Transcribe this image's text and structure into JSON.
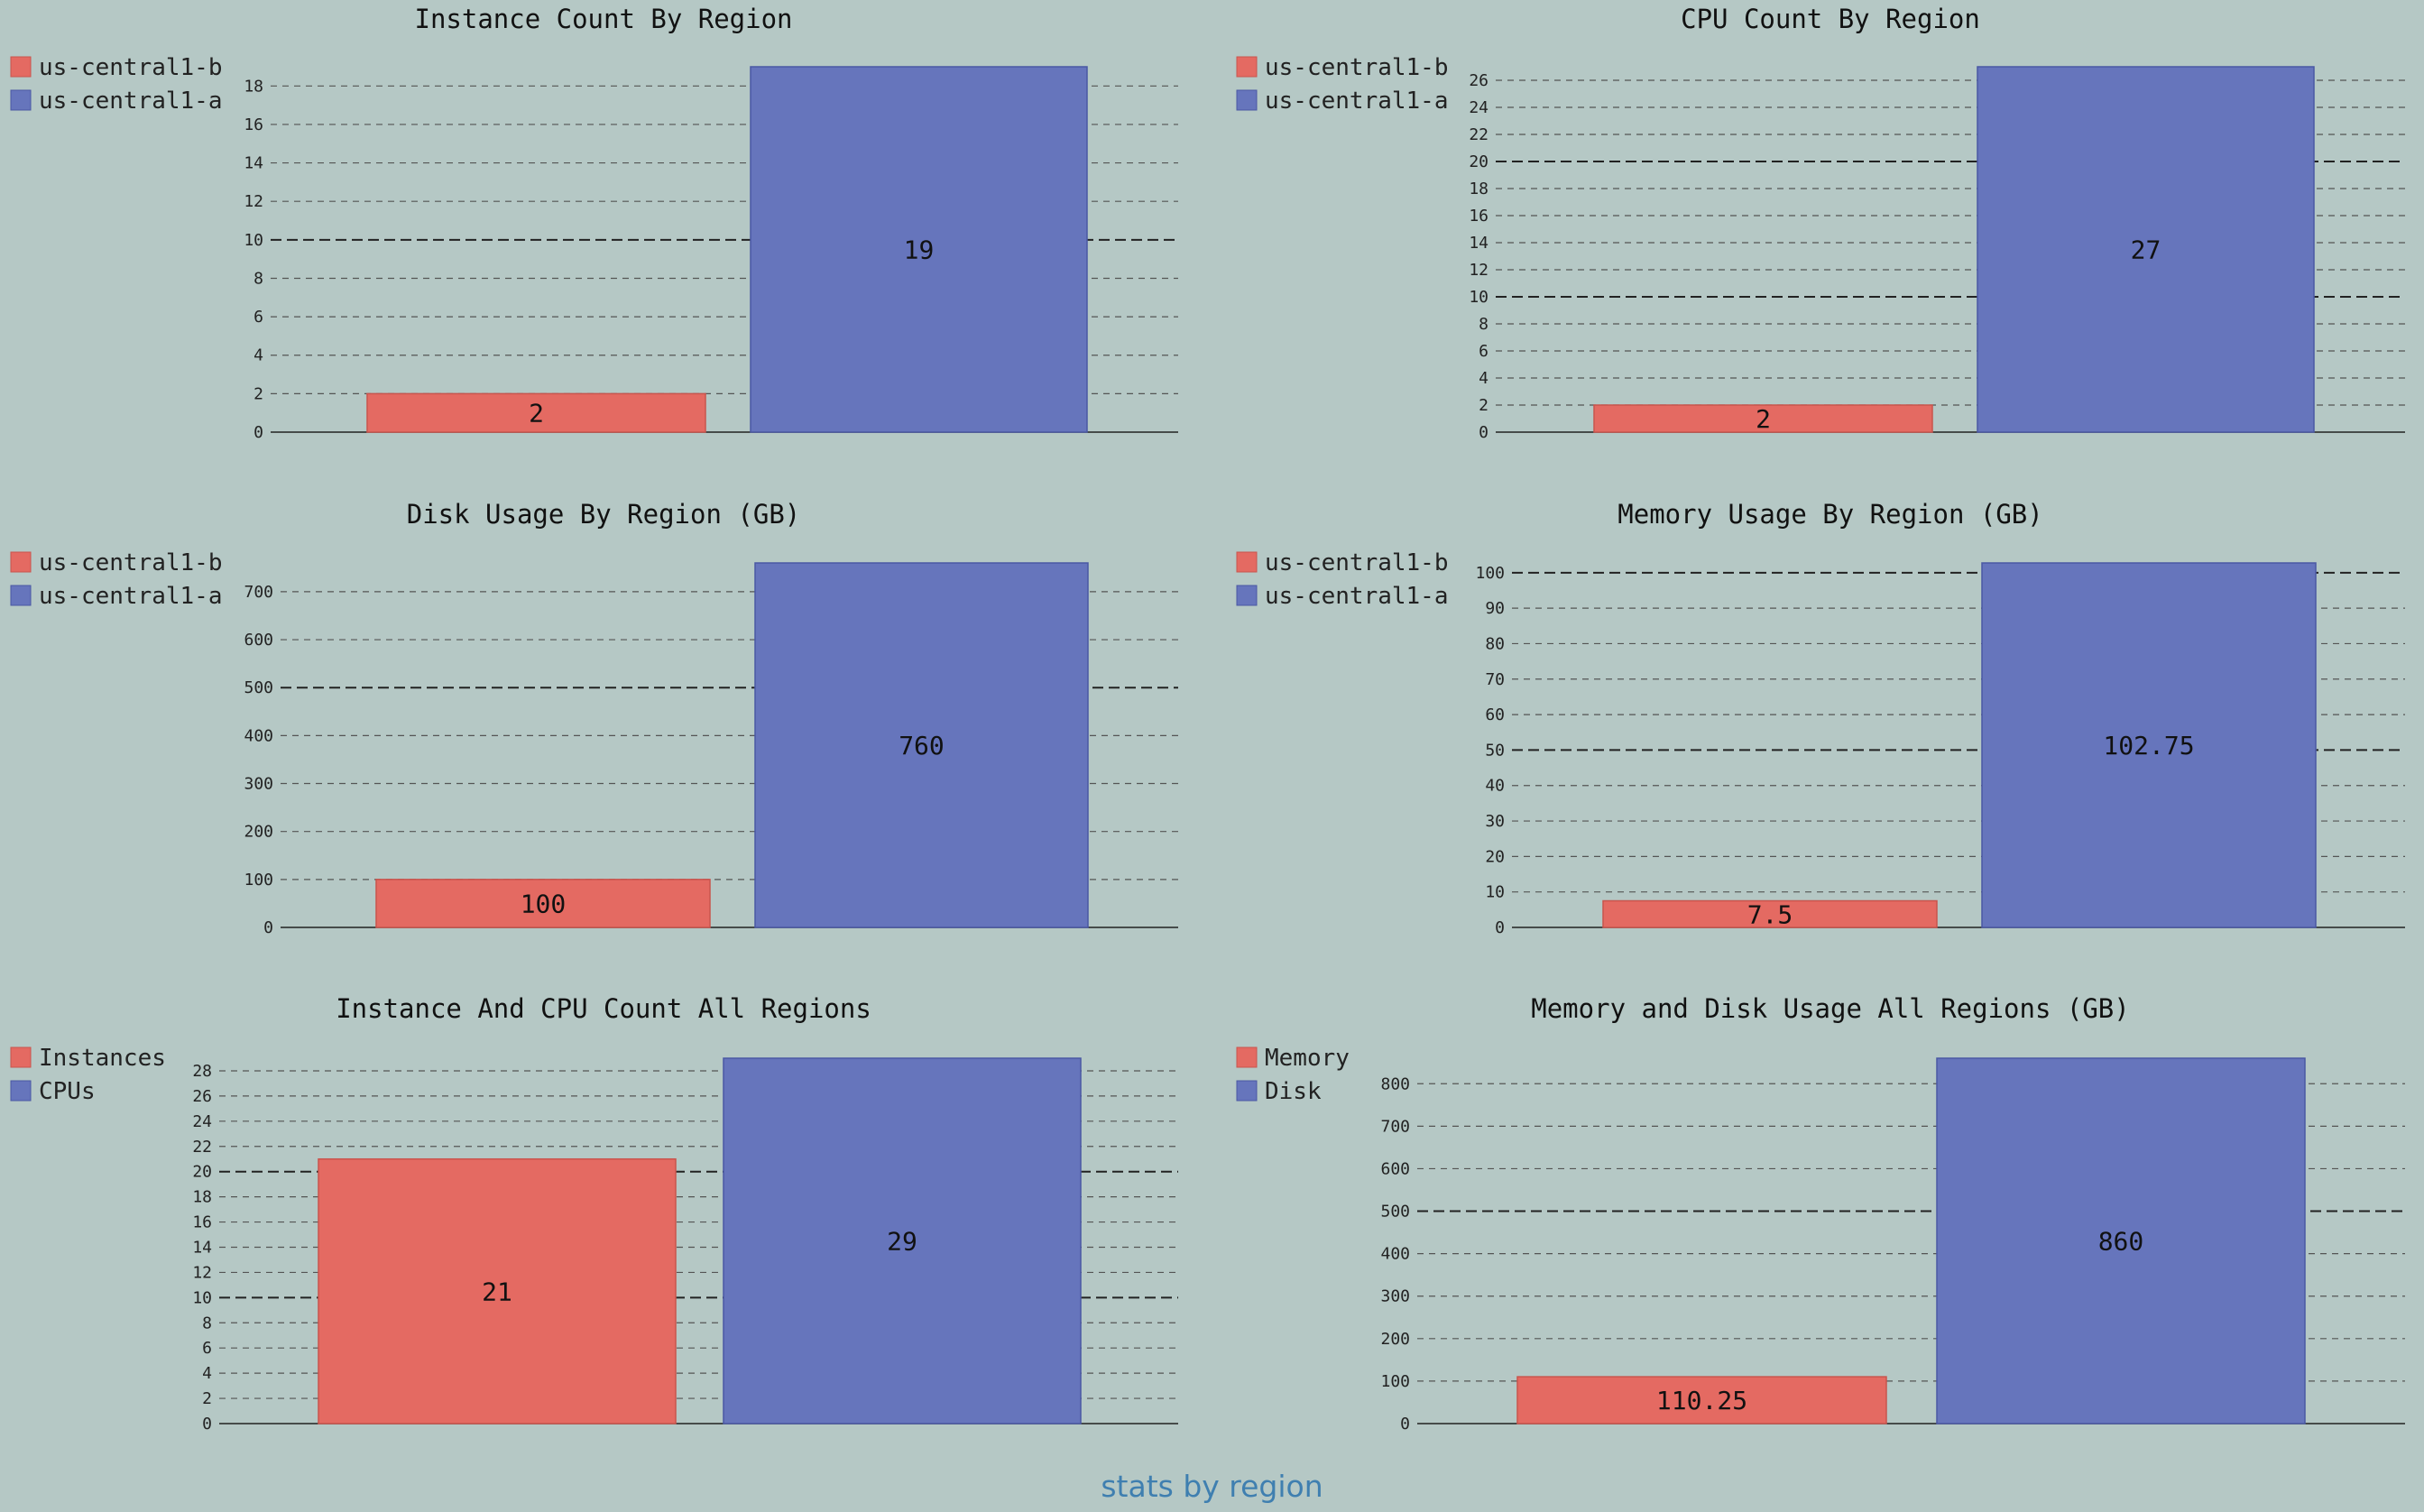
{
  "page": {
    "footer": "stats by region"
  },
  "colors": {
    "series1": "#e46a62",
    "series2": "#6675bc",
    "series1_stroke": "#c9544d",
    "series2_stroke": "#4a58a3",
    "background": "#b5c8c5",
    "text": "#111111",
    "footer": "#3f7fb0"
  },
  "chart_data": [
    {
      "type": "bar",
      "title": "Instance Count By Region",
      "categories": [
        "us-central1-b",
        "us-central1-a"
      ],
      "values": [
        2,
        19
      ],
      "value_labels": [
        "2",
        "19"
      ],
      "legend": [
        "us-central1-b",
        "us-central1-a"
      ],
      "legend_position": "top-left",
      "ylim": [
        0,
        19
      ],
      "yticks": [
        0,
        2,
        4,
        6,
        8,
        10,
        12,
        14,
        16,
        18
      ],
      "major_gridlines": [
        10
      ],
      "grid": true
    },
    {
      "type": "bar",
      "title": "CPU Count By Region",
      "categories": [
        "us-central1-b",
        "us-central1-a"
      ],
      "values": [
        2,
        27
      ],
      "value_labels": [
        "2",
        "27"
      ],
      "legend": [
        "us-central1-b",
        "us-central1-a"
      ],
      "legend_position": "top-left",
      "ylim": [
        0,
        27
      ],
      "yticks": [
        0,
        2,
        4,
        6,
        8,
        10,
        12,
        14,
        16,
        18,
        20,
        22,
        24,
        26
      ],
      "major_gridlines": [
        10,
        20
      ],
      "grid": true
    },
    {
      "type": "bar",
      "title": "Disk Usage By Region (GB)",
      "categories": [
        "us-central1-b",
        "us-central1-a"
      ],
      "values": [
        100,
        760
      ],
      "value_labels": [
        "100",
        "760"
      ],
      "legend": [
        "us-central1-b",
        "us-central1-a"
      ],
      "legend_position": "top-left",
      "ylim": [
        0,
        760
      ],
      "yticks": [
        0,
        100,
        200,
        300,
        400,
        500,
        600,
        700
      ],
      "major_gridlines": [
        500
      ],
      "grid": true
    },
    {
      "type": "bar",
      "title": "Memory Usage By Region (GB)",
      "categories": [
        "us-central1-b",
        "us-central1-a"
      ],
      "values": [
        7.5,
        102.75
      ],
      "value_labels": [
        "7.5",
        "102.75"
      ],
      "legend": [
        "us-central1-b",
        "us-central1-a"
      ],
      "legend_position": "top-left",
      "ylim": [
        0,
        102.75
      ],
      "yticks": [
        0,
        10,
        20,
        30,
        40,
        50,
        60,
        70,
        80,
        90,
        100
      ],
      "major_gridlines": [
        50,
        100
      ],
      "grid": true
    },
    {
      "type": "bar",
      "title": "Instance And CPU Count All Regions",
      "categories": [
        "Instances",
        "CPUs"
      ],
      "values": [
        21,
        29
      ],
      "value_labels": [
        "21",
        "29"
      ],
      "legend": [
        "Instances",
        "CPUs"
      ],
      "legend_position": "top-left",
      "ylim": [
        0,
        29
      ],
      "yticks": [
        0,
        2,
        4,
        6,
        8,
        10,
        12,
        14,
        16,
        18,
        20,
        22,
        24,
        26,
        28
      ],
      "major_gridlines": [
        10,
        20
      ],
      "grid": true
    },
    {
      "type": "bar",
      "title": "Memory and Disk Usage All Regions (GB)",
      "categories": [
        "Memory",
        "Disk"
      ],
      "values": [
        110.25,
        860
      ],
      "value_labels": [
        "110.25",
        "860"
      ],
      "legend": [
        "Memory",
        "Disk"
      ],
      "legend_position": "top-left",
      "ylim": [
        0,
        860
      ],
      "yticks": [
        0,
        100,
        200,
        300,
        400,
        500,
        600,
        700,
        800
      ],
      "major_gridlines": [
        500
      ],
      "grid": true
    }
  ]
}
